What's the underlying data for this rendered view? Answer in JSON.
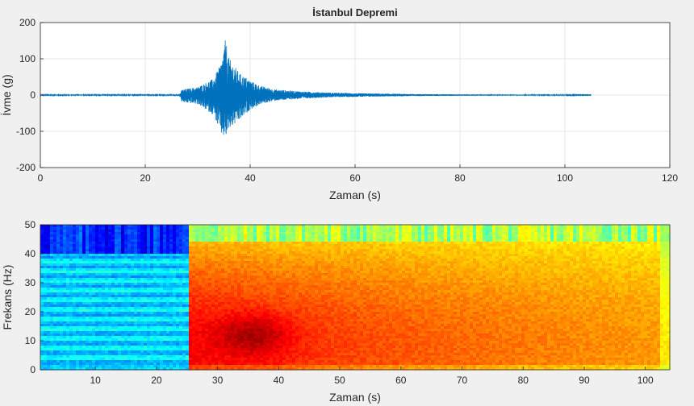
{
  "chart_data": [
    {
      "type": "line",
      "title": "İstanbul Depremi",
      "xlabel": "Zaman (s)",
      "ylabel": "İvme (g)",
      "xlim": [
        0,
        120
      ],
      "ylim": [
        -200,
        200
      ],
      "xticks": [
        0,
        20,
        40,
        60,
        80,
        100,
        120
      ],
      "yticks": [
        -200,
        -100,
        0,
        100,
        200
      ],
      "grid": true,
      "series": [
        {
          "color": "#0072bd",
          "signal_end": 105,
          "envelope": {
            "x": [
              0,
              26.5,
              27,
              30,
              33,
              34.5,
              35.3,
              36,
              38,
              40,
              42,
              45,
              50,
              55,
              60,
              70,
              80,
              90,
              100,
              105
            ],
            "upper": [
              1,
              1,
              15,
              22,
              45,
              90,
              155,
              100,
              60,
              40,
              25,
              15,
              10,
              7,
              5,
              3,
              2,
              1.5,
              1,
              0.5
            ],
            "lower": [
              -1,
              -1,
              -20,
              -25,
              -55,
              -110,
              -120,
              -95,
              -70,
              -40,
              -25,
              -15,
              -10,
              -6,
              -5,
              -3,
              -2,
              -1.5,
              -1,
              -0.5
            ]
          }
        }
      ]
    },
    {
      "type": "heatmap",
      "xlabel": "Zaman (s)",
      "ylabel": "Frekans (Hz)",
      "xlim": [
        1,
        104
      ],
      "ylim": [
        0,
        50
      ],
      "xticks": [
        10,
        20,
        30,
        40,
        50,
        60,
        70,
        80,
        90,
        100
      ],
      "yticks": [
        0,
        10,
        20,
        30,
        40,
        50
      ],
      "colormap": "jet",
      "onset_time": 25.5,
      "peak": {
        "time": 36,
        "frequency": 12
      }
    }
  ]
}
